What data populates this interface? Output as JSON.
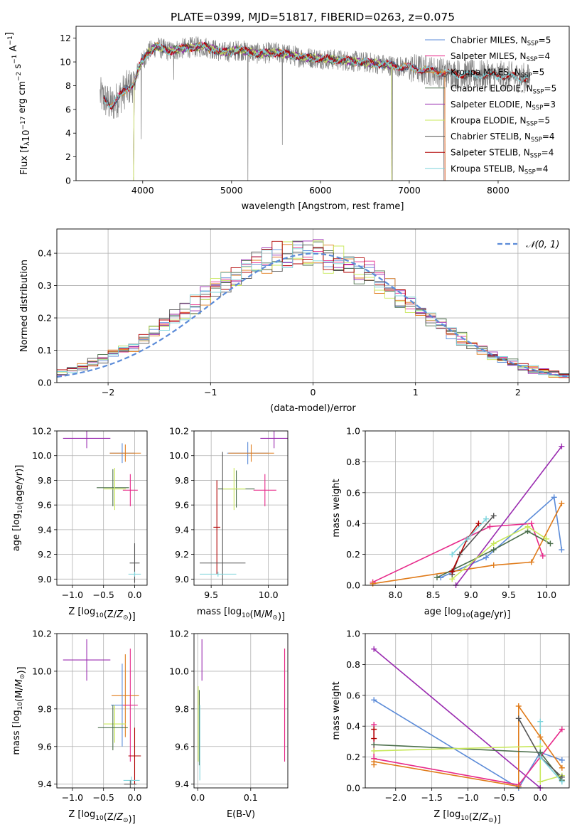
{
  "suptitle": "PLATE=0399, MJD=51817, FIBERID=0263, z=0.075",
  "colors": {
    "Chabrier MILES": "#5b8bd8",
    "Salpeter MILES": "#e7298a",
    "Kroupa MILES": "#e07b1a",
    "Chabrier ELODIE": "#4a6e4a",
    "Salpeter ELODIE": "#9a2bb0",
    "Kroupa ELODIE": "#c8e85a",
    "Chabrier STELIB": "#555555",
    "Salpeter STELIB": "#b00000",
    "Kroupa STELIB": "#7ed4dc"
  },
  "chart_data": [
    {
      "type": "line",
      "id": "spectrum",
      "xlabel": "wavelength [Angstrom, rest frame]",
      "ylabel": "Flux [f_λ10^-17 erg cm^-2 s^-1 A^-1]",
      "xlim": [
        3250,
        8800
      ],
      "ylim": [
        0,
        13
      ],
      "xticks": [
        4000,
        5000,
        6000,
        7000,
        8000
      ],
      "yticks": [
        0,
        2,
        4,
        6,
        8,
        10,
        12
      ],
      "legend_position": "right",
      "grid": false,
      "legend": [
        {
          "name": "Chabrier MILES",
          "sub": "SSP",
          "n": "5"
        },
        {
          "name": "Salpeter MILES",
          "sub": "SSP",
          "n": "4"
        },
        {
          "name": "Kroupa MILES",
          "sub": "SSP",
          "n": "5"
        },
        {
          "name": "Chabrier ELODIE",
          "sub": "SSP",
          "n": "5"
        },
        {
          "name": "Salpeter ELODIE",
          "sub": "SSP",
          "n": "3"
        },
        {
          "name": "Kroupa ELODIE",
          "sub": "SSP",
          "n": "5"
        },
        {
          "name": "Chabrier STELIB",
          "sub": "SSP",
          "n": "4"
        },
        {
          "name": "Salpeter STELIB",
          "sub": "SSP",
          "n": "4"
        },
        {
          "name": "Kroupa STELIB",
          "sub": "SSP",
          "n": "4"
        }
      ],
      "continuum_knots": [
        [
          3520,
          7.2
        ],
        [
          3650,
          6.3
        ],
        [
          3800,
          7.6
        ],
        [
          3900,
          8.2
        ],
        [
          3960,
          9.6
        ],
        [
          4050,
          10.7
        ],
        [
          4150,
          11.3
        ],
        [
          4300,
          10.9
        ],
        [
          4500,
          11.2
        ],
        [
          4700,
          11.3
        ],
        [
          4900,
          10.8
        ],
        [
          5100,
          11.0
        ],
        [
          5300,
          10.7
        ],
        [
          5500,
          10.8
        ],
        [
          5800,
          10.4
        ],
        [
          6000,
          10.3
        ],
        [
          6300,
          10.1
        ],
        [
          6600,
          9.9
        ],
        [
          6900,
          9.6
        ],
        [
          7200,
          9.3
        ],
        [
          7500,
          9.0
        ],
        [
          7800,
          8.9
        ],
        [
          8100,
          8.8
        ],
        [
          8350,
          8.6
        ]
      ]
    },
    {
      "type": "line",
      "id": "residuals",
      "xlabel": "(data-model)/error",
      "ylabel": "Normed distribution",
      "xlim": [
        -2.5,
        2.5
      ],
      "ylim": [
        0,
        0.475
      ],
      "xticks": [
        -2,
        -1,
        0,
        1,
        2
      ],
      "yticks": [
        0.0,
        0.1,
        0.2,
        0.3,
        0.4
      ],
      "grid": true,
      "legend_position": "upper right",
      "gaussian_label": "N(0,1)"
    },
    {
      "type": "scatter",
      "id": "age-vs-Z",
      "xlabel": "Z [log10(Z/Z⊙)]",
      "ylabel": "age  [log10(age/yr)]",
      "xlim": [
        -1.25,
        0.2
      ],
      "ylim": [
        8.95,
        10.2
      ],
      "xticks": [
        -1.0,
        -0.5,
        0.0
      ],
      "yticks": [
        9.0,
        9.2,
        9.4,
        9.6,
        9.8,
        10.0,
        10.2
      ],
      "grid": true,
      "points": [
        {
          "series": "Salpeter ELODIE",
          "x": -0.77,
          "y": 10.14,
          "xerr": 0.38,
          "yerr": 0.08
        },
        {
          "series": "Chabrier MILES",
          "x": -0.2,
          "y": 10.02,
          "xerr": 0.2,
          "yerr": 0.08
        },
        {
          "series": "Kroupa MILES",
          "x": -0.15,
          "y": 10.02,
          "xerr": 0.25,
          "yerr": 0.07
        },
        {
          "series": "Salpeter MILES",
          "x": -0.07,
          "y": 9.72,
          "xerr": 0.12,
          "yerr": 0.13
        },
        {
          "series": "Chabrier ELODIE",
          "x": -0.35,
          "y": 9.74,
          "xerr": 0.26,
          "yerr": 0.15
        },
        {
          "series": "Kroupa ELODIE",
          "x": -0.32,
          "y": 9.73,
          "xerr": 0.18,
          "yerr": 0.17
        },
        {
          "series": "Chabrier STELIB",
          "x": 0.0,
          "y": 9.13,
          "xerr": 0.08,
          "yerr": 0.16
        },
        {
          "series": "Kroupa STELIB",
          "x": 0.0,
          "y": 9.04,
          "xerr": 0.1,
          "yerr": 0.02
        }
      ]
    },
    {
      "type": "scatter",
      "id": "age-vs-mass",
      "xlabel": "mass [log10(M/M⊙)]",
      "ylabel": "",
      "xlim": [
        9.35,
        10.17
      ],
      "ylim": [
        8.95,
        10.2
      ],
      "xticks": [
        9.5,
        10.0
      ],
      "yticks": [
        9.0,
        9.2,
        9.4,
        9.6,
        9.8,
        10.0,
        10.2
      ],
      "grid": true,
      "points": [
        {
          "series": "Salpeter ELODIE",
          "x": 10.05,
          "y": 10.14,
          "xerr": 0.12,
          "yerr": 0.08
        },
        {
          "series": "Chabrier MILES",
          "x": 9.82,
          "y": 10.02,
          "xerr": 0.18,
          "yerr": 0.09
        },
        {
          "series": "Kroupa MILES",
          "x": 9.85,
          "y": 10.02,
          "xerr": 0.2,
          "yerr": 0.07
        },
        {
          "series": "Salpeter MILES",
          "x": 9.97,
          "y": 9.72,
          "xerr": 0.1,
          "yerr": 0.13
        },
        {
          "series": "Chabrier ELODIE",
          "x": 9.72,
          "y": 9.73,
          "xerr": 0.16,
          "yerr": 0.15
        },
        {
          "series": "Kroupa ELODIE",
          "x": 9.7,
          "y": 9.73,
          "xerr": 0.1,
          "yerr": 0.17
        },
        {
          "series": "Salpeter STELIB",
          "x": 9.55,
          "y": 9.42,
          "xerr": 0.03,
          "yerr": 0.38
        },
        {
          "series": "Chabrier STELIB",
          "x": 9.6,
          "y": 9.13,
          "xerr": 0.2,
          "yerr": 0.9
        },
        {
          "series": "Kroupa STELIB",
          "x": 9.56,
          "y": 9.04,
          "xerr": 0.16,
          "yerr": 0.02
        }
      ]
    },
    {
      "type": "line",
      "id": "weight-vs-age",
      "xlabel": "age  [log10(age/yr)]",
      "ylabel": "mass weight",
      "xlim": [
        7.6,
        10.3
      ],
      "ylim": [
        0.0,
        1.0
      ],
      "xticks": [
        8.0,
        8.5,
        9.0,
        9.5,
        10.0
      ],
      "yticks": [
        0.0,
        0.2,
        0.4,
        0.6,
        0.8,
        1.0
      ],
      "grid": true,
      "series": [
        {
          "name": "Chabrier MILES",
          "x": [
            8.6,
            9.2,
            10.1,
            10.2
          ],
          "y": [
            0.05,
            0.18,
            0.57,
            0.23
          ]
        },
        {
          "name": "Salpeter MILES",
          "x": [
            7.7,
            9.25,
            9.8,
            9.95
          ],
          "y": [
            0.02,
            0.38,
            0.4,
            0.19
          ]
        },
        {
          "name": "Kroupa MILES",
          "x": [
            7.7,
            9.3,
            9.8,
            10.2
          ],
          "y": [
            0.01,
            0.13,
            0.15,
            0.53
          ]
        },
        {
          "name": "Chabrier ELODIE",
          "x": [
            8.55,
            9.3,
            9.75,
            10.05
          ],
          "y": [
            0.05,
            0.23,
            0.35,
            0.27
          ]
        },
        {
          "name": "Salpeter ELODIE",
          "x": [
            8.8,
            10.2
          ],
          "y": [
            0.0,
            0.9
          ]
        },
        {
          "name": "Kroupa ELODIE",
          "x": [
            8.75,
            9.3,
            9.75,
            10.0
          ],
          "y": [
            0.04,
            0.27,
            0.38,
            0.3
          ]
        },
        {
          "name": "Chabrier STELIB",
          "x": [
            8.75,
            8.85,
            9.3
          ],
          "y": [
            0.07,
            0.2,
            0.45
          ]
        },
        {
          "name": "Salpeter STELIB",
          "x": [
            8.75,
            8.95,
            9.1
          ],
          "y": [
            0.09,
            0.3,
            0.4
          ]
        },
        {
          "name": "Kroupa STELIB",
          "x": [
            8.75,
            8.95,
            9.2
          ],
          "y": [
            0.2,
            0.3,
            0.43
          ]
        }
      ]
    },
    {
      "type": "scatter",
      "id": "mass-vs-Z",
      "xlabel": "Z [log10(Z/Z⊙)]",
      "ylabel": "mass [log10(M/M⊙)]",
      "xlim": [
        -1.25,
        0.2
      ],
      "ylim": [
        9.38,
        10.2
      ],
      "xticks": [
        -1.0,
        -0.5,
        0.0
      ],
      "yticks": [
        9.4,
        9.6,
        9.8,
        10.0,
        10.2
      ],
      "grid": true,
      "points": [
        {
          "series": "Salpeter ELODIE",
          "x": -0.77,
          "y": 10.06,
          "xerr": 0.38,
          "yerr": 0.11
        },
        {
          "series": "Kroupa MILES",
          "x": -0.15,
          "y": 9.87,
          "xerr": 0.22,
          "yerr": 0.22
        },
        {
          "series": "Chabrier MILES",
          "x": -0.2,
          "y": 9.82,
          "xerr": 0.18,
          "yerr": 0.22
        },
        {
          "series": "Salpeter MILES",
          "x": -0.07,
          "y": 9.82,
          "xerr": 0.12,
          "yerr": 0.3
        },
        {
          "series": "Kroupa ELODIE",
          "x": -0.32,
          "y": 9.72,
          "xerr": 0.18,
          "yerr": 0.1
        },
        {
          "series": "Chabrier ELODIE",
          "x": -0.35,
          "y": 9.7,
          "xerr": 0.24,
          "yerr": 0.12
        },
        {
          "series": "Salpeter STELIB",
          "x": 0.0,
          "y": 9.55,
          "xerr": 0.1,
          "yerr": 0.15
        },
        {
          "series": "Kroupa STELIB",
          "x": -0.05,
          "y": 9.42,
          "xerr": 0.13,
          "yerr": 0.02
        },
        {
          "series": "Chabrier STELIB",
          "x": -0.07,
          "y": 9.4,
          "xerr": 0.1,
          "yerr": 0.02
        }
      ]
    },
    {
      "type": "scatter",
      "id": "mass-vs-ebv",
      "xlabel": "E(B-V)",
      "ylabel": "",
      "xlim": [
        -0.007,
        0.17
      ],
      "ylim": [
        9.38,
        10.2
      ],
      "xticks": [
        0.0,
        0.1
      ],
      "yticks": [
        9.4,
        9.6,
        9.8,
        10.0,
        10.2
      ],
      "grid": true,
      "points": [
        {
          "series": "Salpeter ELODIE",
          "x": 0.008,
          "y": 10.06,
          "yerr": 0.11
        },
        {
          "series": "Kroupa ELODIE",
          "x": 0.001,
          "y": 9.72,
          "yerr": 0.2
        },
        {
          "series": "Chabrier ELODIE",
          "x": 0.003,
          "y": 9.7,
          "yerr": 0.2
        },
        {
          "series": "Kroupa STELIB",
          "x": 0.004,
          "y": 9.62,
          "yerr": 0.2
        },
        {
          "series": "Kroupa MILES",
          "x": 0.164,
          "y": 9.85,
          "yerr": 0.27
        },
        {
          "series": "Salpeter MILES",
          "x": 0.164,
          "y": 9.82,
          "yerr": 0.3
        }
      ]
    },
    {
      "type": "line",
      "id": "weight-vs-Z",
      "xlabel": "Z [log10(Z/Z⊙)]",
      "ylabel": "mass weight",
      "xlim": [
        -2.42,
        0.4
      ],
      "ylim": [
        0.0,
        1.0
      ],
      "xticks": [
        -2.0,
        -1.5,
        -1.0,
        -0.5,
        0.0
      ],
      "yticks": [
        0.0,
        0.2,
        0.4,
        0.6,
        0.8,
        1.0
      ],
      "grid": true,
      "series": [
        {
          "name": "Salpeter ELODIE",
          "x": [
            -2.3,
            0.0
          ],
          "y": [
            0.9,
            0.0
          ]
        },
        {
          "name": "Chabrier MILES",
          "x": [
            -2.3,
            -0.3,
            0.0,
            0.3
          ],
          "y": [
            0.57,
            0.0,
            0.23,
            0.18
          ]
        },
        {
          "name": "Salpeter MILES",
          "x": [
            -2.3,
            -2.3,
            -0.3,
            0.0,
            0.3
          ],
          "y": [
            0.41,
            0.19,
            0.02,
            0.2,
            0.38
          ]
        },
        {
          "name": "Kroupa MILES",
          "x": [
            -2.3,
            -2.3,
            -0.3,
            -0.3,
            0.0,
            0.3
          ],
          "y": [
            0.15,
            0.17,
            0.01,
            0.53,
            0.33,
            0.13
          ]
        },
        {
          "name": "Chabrier ELODIE",
          "x": [
            -2.3,
            0.0,
            0.3
          ],
          "y": [
            0.28,
            0.23,
            0.05
          ]
        },
        {
          "name": "Kroupa ELODIE",
          "x": [
            -2.3,
            0.0,
            0.0,
            0.3
          ],
          "y": [
            0.24,
            0.27,
            0.04,
            0.08
          ]
        },
        {
          "name": "Salpeter STELIB",
          "x": [
            -2.3,
            -2.3
          ],
          "y": [
            0.32,
            0.38
          ]
        },
        {
          "name": "Chabrier STELIB",
          "x": [
            -0.3,
            0.0,
            0.3
          ],
          "y": [
            0.45,
            0.2,
            0.07
          ]
        },
        {
          "name": "Kroupa STELIB",
          "x": [
            0.0,
            0.0,
            0.3
          ],
          "y": [
            0.43,
            0.2,
            0.04
          ]
        }
      ]
    }
  ]
}
